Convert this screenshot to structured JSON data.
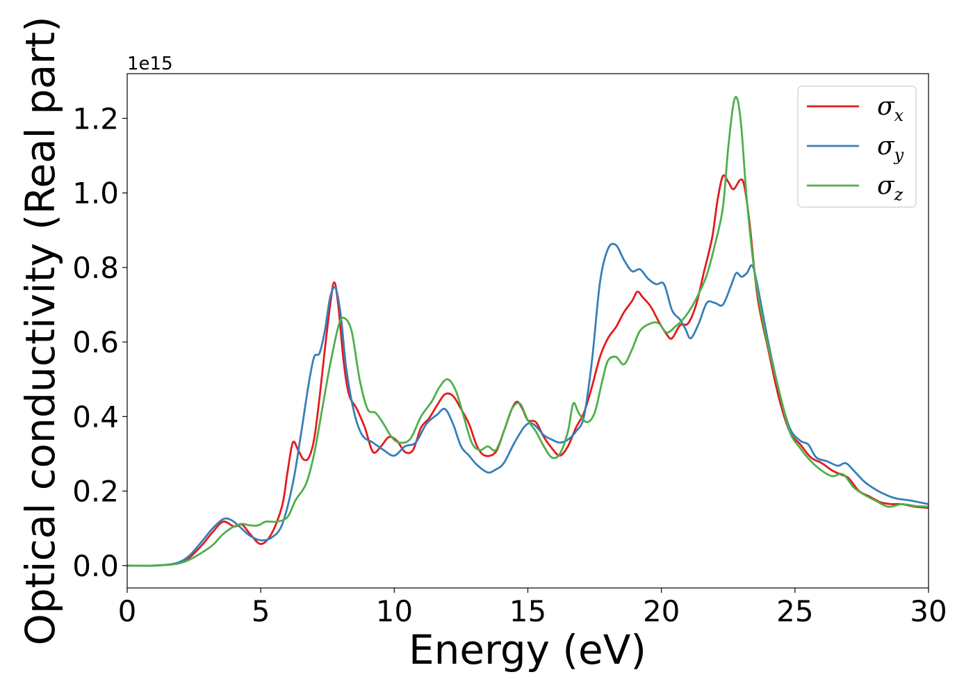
{
  "chart_data": {
    "type": "line",
    "title": "",
    "xlabel": "Energy (eV)",
    "ylabel": "Optical conductivity (Real part)",
    "y_offset_text": "1e15",
    "xlim": [
      0,
      30
    ],
    "ylim": [
      -0.06,
      1.32
    ],
    "x_ticks": [
      0,
      5,
      10,
      15,
      20,
      25,
      30
    ],
    "x_tick_labels": [
      "0",
      "5",
      "10",
      "15",
      "20",
      "25",
      "30"
    ],
    "y_ticks": [
      0.0,
      0.2,
      0.4,
      0.6,
      0.8,
      1.0,
      1.2
    ],
    "y_tick_labels": [
      "0.0",
      "0.2",
      "0.4",
      "0.6",
      "0.8",
      "1.0",
      "1.2"
    ],
    "grid": false,
    "legend_position": "top-right",
    "series": [
      {
        "name": "σx",
        "symbol": "σ",
        "subscript": "x",
        "color": "#e41a1c",
        "points": [
          [
            0,
            0
          ],
          [
            1,
            0
          ],
          [
            1.8,
            0.005
          ],
          [
            2.3,
            0.02
          ],
          [
            2.8,
            0.055
          ],
          [
            3.2,
            0.09
          ],
          [
            3.6,
            0.118
          ],
          [
            4.0,
            0.105
          ],
          [
            4.3,
            0.11
          ],
          [
            4.6,
            0.085
          ],
          [
            5.0,
            0.058
          ],
          [
            5.4,
            0.085
          ],
          [
            5.8,
            0.16
          ],
          [
            6.0,
            0.25
          ],
          [
            6.2,
            0.33
          ],
          [
            6.4,
            0.31
          ],
          [
            6.6,
            0.285
          ],
          [
            6.8,
            0.29
          ],
          [
            7.0,
            0.34
          ],
          [
            7.2,
            0.45
          ],
          [
            7.4,
            0.58
          ],
          [
            7.6,
            0.7
          ],
          [
            7.75,
            0.76
          ],
          [
            7.9,
            0.7
          ],
          [
            8.1,
            0.55
          ],
          [
            8.3,
            0.46
          ],
          [
            8.6,
            0.42
          ],
          [
            8.9,
            0.37
          ],
          [
            9.2,
            0.305
          ],
          [
            9.5,
            0.32
          ],
          [
            9.8,
            0.345
          ],
          [
            10.1,
            0.335
          ],
          [
            10.4,
            0.305
          ],
          [
            10.7,
            0.31
          ],
          [
            11.0,
            0.37
          ],
          [
            11.3,
            0.395
          ],
          [
            11.6,
            0.43
          ],
          [
            11.9,
            0.46
          ],
          [
            12.2,
            0.455
          ],
          [
            12.5,
            0.42
          ],
          [
            12.8,
            0.38
          ],
          [
            13.1,
            0.32
          ],
          [
            13.4,
            0.295
          ],
          [
            13.8,
            0.305
          ],
          [
            14.1,
            0.36
          ],
          [
            14.4,
            0.42
          ],
          [
            14.6,
            0.44
          ],
          [
            14.8,
            0.42
          ],
          [
            15.0,
            0.39
          ],
          [
            15.3,
            0.385
          ],
          [
            15.6,
            0.345
          ],
          [
            15.9,
            0.315
          ],
          [
            16.2,
            0.295
          ],
          [
            16.5,
            0.32
          ],
          [
            16.8,
            0.37
          ],
          [
            17.1,
            0.41
          ],
          [
            17.4,
            0.48
          ],
          [
            17.7,
            0.56
          ],
          [
            18.0,
            0.61
          ],
          [
            18.3,
            0.64
          ],
          [
            18.6,
            0.68
          ],
          [
            18.9,
            0.71
          ],
          [
            19.1,
            0.735
          ],
          [
            19.3,
            0.72
          ],
          [
            19.6,
            0.695
          ],
          [
            19.9,
            0.655
          ],
          [
            20.2,
            0.62
          ],
          [
            20.4,
            0.61
          ],
          [
            20.7,
            0.645
          ],
          [
            21.0,
            0.65
          ],
          [
            21.3,
            0.7
          ],
          [
            21.6,
            0.79
          ],
          [
            21.9,
            0.88
          ],
          [
            22.1,
            0.98
          ],
          [
            22.3,
            1.045
          ],
          [
            22.5,
            1.03
          ],
          [
            22.7,
            1.01
          ],
          [
            22.95,
            1.035
          ],
          [
            23.1,
            1.02
          ],
          [
            23.3,
            0.92
          ],
          [
            23.6,
            0.72
          ],
          [
            24.0,
            0.58
          ],
          [
            24.4,
            0.45
          ],
          [
            24.8,
            0.36
          ],
          [
            25.2,
            0.325
          ],
          [
            25.6,
            0.29
          ],
          [
            26.0,
            0.275
          ],
          [
            26.4,
            0.255
          ],
          [
            26.7,
            0.245
          ],
          [
            27.0,
            0.235
          ],
          [
            27.4,
            0.2
          ],
          [
            27.8,
            0.185
          ],
          [
            28.2,
            0.17
          ],
          [
            28.6,
            0.165
          ],
          [
            29.0,
            0.165
          ],
          [
            29.5,
            0.158
          ],
          [
            30.0,
            0.155
          ]
        ]
      },
      {
        "name": "σy",
        "symbol": "σ",
        "subscript": "y",
        "color": "#377eb8",
        "points": [
          [
            0,
            0
          ],
          [
            1,
            0
          ],
          [
            1.8,
            0.006
          ],
          [
            2.3,
            0.025
          ],
          [
            2.8,
            0.065
          ],
          [
            3.2,
            0.1
          ],
          [
            3.6,
            0.125
          ],
          [
            3.9,
            0.122
          ],
          [
            4.2,
            0.105
          ],
          [
            4.6,
            0.08
          ],
          [
            5.0,
            0.068
          ],
          [
            5.4,
            0.075
          ],
          [
            5.8,
            0.11
          ],
          [
            6.2,
            0.22
          ],
          [
            6.5,
            0.35
          ],
          [
            6.8,
            0.49
          ],
          [
            7.0,
            0.56
          ],
          [
            7.2,
            0.57
          ],
          [
            7.4,
            0.63
          ],
          [
            7.6,
            0.72
          ],
          [
            7.8,
            0.745
          ],
          [
            8.0,
            0.67
          ],
          [
            8.2,
            0.53
          ],
          [
            8.5,
            0.41
          ],
          [
            8.8,
            0.35
          ],
          [
            9.2,
            0.33
          ],
          [
            9.6,
            0.31
          ],
          [
            10.0,
            0.295
          ],
          [
            10.4,
            0.32
          ],
          [
            10.8,
            0.33
          ],
          [
            11.2,
            0.38
          ],
          [
            11.6,
            0.405
          ],
          [
            11.9,
            0.42
          ],
          [
            12.2,
            0.38
          ],
          [
            12.5,
            0.32
          ],
          [
            12.8,
            0.295
          ],
          [
            13.1,
            0.27
          ],
          [
            13.5,
            0.25
          ],
          [
            13.8,
            0.258
          ],
          [
            14.1,
            0.275
          ],
          [
            14.5,
            0.33
          ],
          [
            14.9,
            0.375
          ],
          [
            15.2,
            0.38
          ],
          [
            15.6,
            0.35
          ],
          [
            15.9,
            0.338
          ],
          [
            16.2,
            0.33
          ],
          [
            16.5,
            0.338
          ],
          [
            16.8,
            0.36
          ],
          [
            17.1,
            0.4
          ],
          [
            17.4,
            0.55
          ],
          [
            17.7,
            0.76
          ],
          [
            18.0,
            0.85
          ],
          [
            18.3,
            0.86
          ],
          [
            18.6,
            0.82
          ],
          [
            18.9,
            0.79
          ],
          [
            19.2,
            0.795
          ],
          [
            19.5,
            0.77
          ],
          [
            19.8,
            0.755
          ],
          [
            20.1,
            0.755
          ],
          [
            20.4,
            0.685
          ],
          [
            20.7,
            0.66
          ],
          [
            20.9,
            0.635
          ],
          [
            21.1,
            0.61
          ],
          [
            21.4,
            0.65
          ],
          [
            21.7,
            0.705
          ],
          [
            22.0,
            0.705
          ],
          [
            22.3,
            0.7
          ],
          [
            22.6,
            0.75
          ],
          [
            22.8,
            0.785
          ],
          [
            23.0,
            0.775
          ],
          [
            23.2,
            0.785
          ],
          [
            23.4,
            0.805
          ],
          [
            23.6,
            0.75
          ],
          [
            24.0,
            0.6
          ],
          [
            24.4,
            0.47
          ],
          [
            24.8,
            0.37
          ],
          [
            25.2,
            0.335
          ],
          [
            25.5,
            0.325
          ],
          [
            25.8,
            0.29
          ],
          [
            26.2,
            0.28
          ],
          [
            26.6,
            0.268
          ],
          [
            26.9,
            0.275
          ],
          [
            27.2,
            0.255
          ],
          [
            27.6,
            0.225
          ],
          [
            28.0,
            0.205
          ],
          [
            28.4,
            0.19
          ],
          [
            28.8,
            0.18
          ],
          [
            29.3,
            0.175
          ],
          [
            30.0,
            0.165
          ]
        ]
      },
      {
        "name": "σz",
        "symbol": "σ",
        "subscript": "z",
        "color": "#4daf4a",
        "points": [
          [
            0,
            0
          ],
          [
            1,
            0
          ],
          [
            1.8,
            0.004
          ],
          [
            2.3,
            0.015
          ],
          [
            2.8,
            0.035
          ],
          [
            3.2,
            0.055
          ],
          [
            3.6,
            0.085
          ],
          [
            4.0,
            0.105
          ],
          [
            4.3,
            0.112
          ],
          [
            4.6,
            0.108
          ],
          [
            4.9,
            0.108
          ],
          [
            5.2,
            0.118
          ],
          [
            5.6,
            0.118
          ],
          [
            6.0,
            0.13
          ],
          [
            6.3,
            0.175
          ],
          [
            6.7,
            0.22
          ],
          [
            7.0,
            0.3
          ],
          [
            7.3,
            0.42
          ],
          [
            7.6,
            0.54
          ],
          [
            7.9,
            0.64
          ],
          [
            8.1,
            0.665
          ],
          [
            8.4,
            0.63
          ],
          [
            8.7,
            0.5
          ],
          [
            9.0,
            0.42
          ],
          [
            9.3,
            0.41
          ],
          [
            9.6,
            0.38
          ],
          [
            9.9,
            0.345
          ],
          [
            10.2,
            0.33
          ],
          [
            10.6,
            0.34
          ],
          [
            11.0,
            0.4
          ],
          [
            11.4,
            0.44
          ],
          [
            11.7,
            0.48
          ],
          [
            12.0,
            0.5
          ],
          [
            12.3,
            0.47
          ],
          [
            12.6,
            0.4
          ],
          [
            12.9,
            0.33
          ],
          [
            13.2,
            0.31
          ],
          [
            13.5,
            0.32
          ],
          [
            13.8,
            0.31
          ],
          [
            14.1,
            0.36
          ],
          [
            14.4,
            0.42
          ],
          [
            14.7,
            0.435
          ],
          [
            15.0,
            0.39
          ],
          [
            15.3,
            0.36
          ],
          [
            15.6,
            0.32
          ],
          [
            15.9,
            0.29
          ],
          [
            16.2,
            0.3
          ],
          [
            16.5,
            0.36
          ],
          [
            16.7,
            0.435
          ],
          [
            16.9,
            0.41
          ],
          [
            17.2,
            0.385
          ],
          [
            17.5,
            0.41
          ],
          [
            17.8,
            0.5
          ],
          [
            18.0,
            0.55
          ],
          [
            18.3,
            0.56
          ],
          [
            18.6,
            0.54
          ],
          [
            18.9,
            0.58
          ],
          [
            19.2,
            0.63
          ],
          [
            19.6,
            0.65
          ],
          [
            19.9,
            0.65
          ],
          [
            20.2,
            0.625
          ],
          [
            20.5,
            0.64
          ],
          [
            20.8,
            0.66
          ],
          [
            21.1,
            0.69
          ],
          [
            21.4,
            0.73
          ],
          [
            21.7,
            0.78
          ],
          [
            22.0,
            0.86
          ],
          [
            22.3,
            0.96
          ],
          [
            22.5,
            1.12
          ],
          [
            22.7,
            1.24
          ],
          [
            22.85,
            1.25
          ],
          [
            23.0,
            1.17
          ],
          [
            23.2,
            0.98
          ],
          [
            23.5,
            0.78
          ],
          [
            23.9,
            0.62
          ],
          [
            24.4,
            0.47
          ],
          [
            24.8,
            0.36
          ],
          [
            25.2,
            0.315
          ],
          [
            25.6,
            0.28
          ],
          [
            26.0,
            0.255
          ],
          [
            26.4,
            0.24
          ],
          [
            26.8,
            0.245
          ],
          [
            27.2,
            0.21
          ],
          [
            27.6,
            0.19
          ],
          [
            28.0,
            0.175
          ],
          [
            28.5,
            0.158
          ],
          [
            29.0,
            0.165
          ],
          [
            29.5,
            0.16
          ],
          [
            30.0,
            0.158
          ]
        ]
      }
    ]
  }
}
